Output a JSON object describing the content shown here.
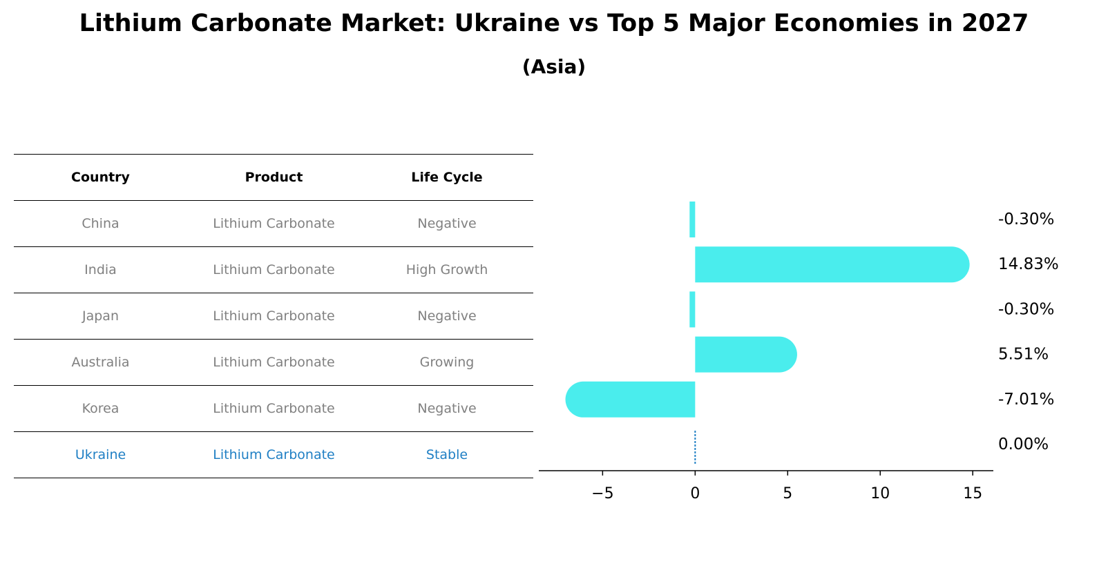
{
  "title": "Lithium Carbonate Market: Ukraine vs Top 5 Major Economies in 2027",
  "subtitle": "(Asia)",
  "table": {
    "headers": [
      "Country",
      "Product",
      "Life Cycle"
    ],
    "rows": [
      {
        "country": "China",
        "product": "Lithium Carbonate",
        "life_cycle": "Negative"
      },
      {
        "country": "India",
        "product": "Lithium Carbonate",
        "life_cycle": "High Growth"
      },
      {
        "country": "Japan",
        "product": "Lithium Carbonate",
        "life_cycle": "Negative"
      },
      {
        "country": "Australia",
        "product": "Lithium Carbonate",
        "life_cycle": "Growing"
      },
      {
        "country": "Korea",
        "product": "Lithium Carbonate",
        "life_cycle": "Negative"
      },
      {
        "country": "Ukraine",
        "product": "Lithium Carbonate",
        "life_cycle": "Stable"
      }
    ],
    "highlight_row": "Ukraine",
    "text_color": "#808080",
    "highlight_color": "#1f7fc4"
  },
  "chart_data": {
    "type": "bar",
    "orientation": "horizontal",
    "categories": [
      "China",
      "India",
      "Japan",
      "Australia",
      "Korea",
      "Ukraine"
    ],
    "values": [
      -0.3,
      14.83,
      -0.3,
      5.51,
      -7.01,
      0.0
    ],
    "value_labels": [
      "-0.30%",
      "14.83%",
      "-0.30%",
      "5.51%",
      "-7.01%",
      "0.00%"
    ],
    "xlim": [
      -8,
      16
    ],
    "xticks": [
      -5,
      0,
      5,
      10,
      15
    ],
    "xtick_labels": [
      "−5",
      "0",
      "5",
      "10",
      "15"
    ],
    "bar_color": "#4aeded",
    "zero_line_color": "#1f7fc4",
    "grid": false
  }
}
